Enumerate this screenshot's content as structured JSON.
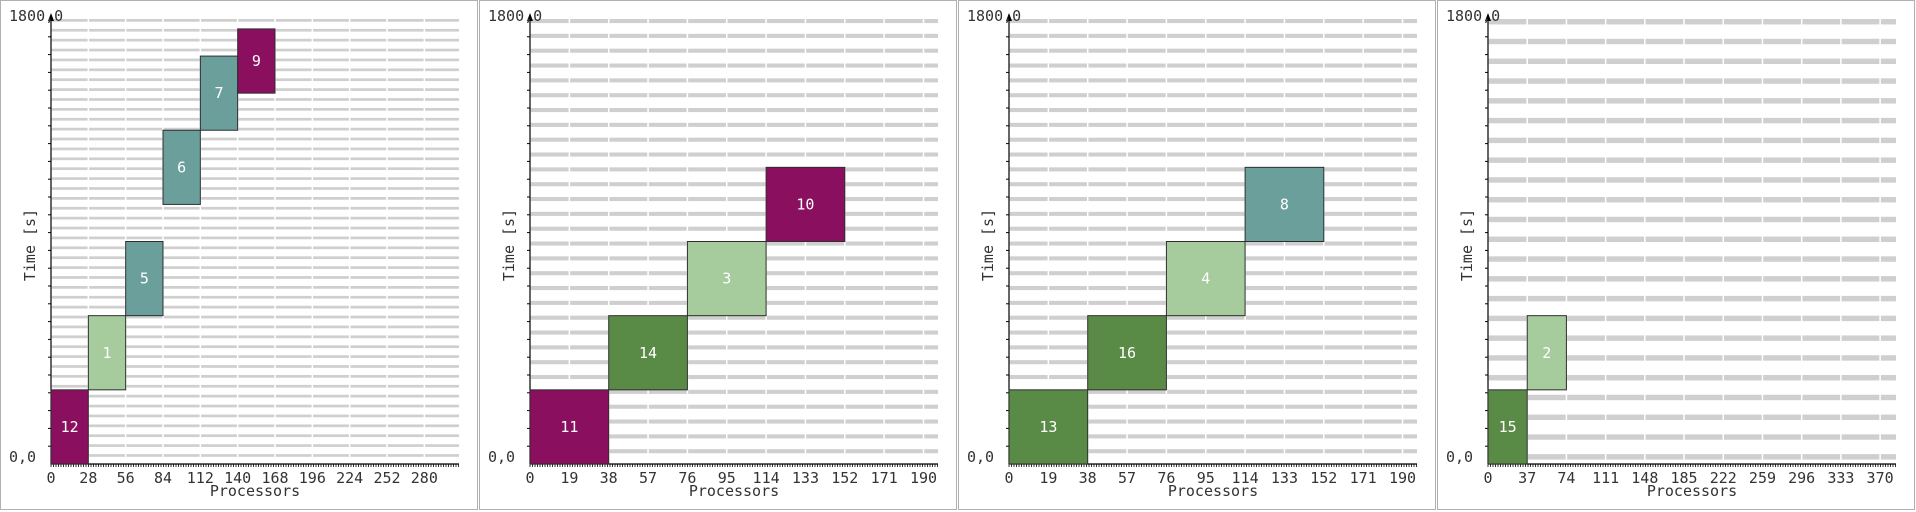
{
  "chart_data": [
    {
      "type": "gantt",
      "xlabel": "Processors",
      "ylabel": "Time [s]",
      "y_top_label": "1800,0",
      "y_bottom_label": "0,0",
      "xlim": [
        0,
        306
      ],
      "ylim": [
        0,
        1800
      ],
      "x_ticks": [
        "0",
        "28",
        "56",
        "84",
        "112",
        "140",
        "168",
        "196",
        "224",
        "252",
        "280"
      ],
      "grid_rows": 90,
      "jobs": [
        {
          "label": "12",
          "proc_start": 0,
          "proc_end": 28,
          "t_start": 0,
          "t_end": 300,
          "color": "#8b0f5f"
        },
        {
          "label": "1",
          "proc_start": 28,
          "proc_end": 56,
          "t_start": 300,
          "t_end": 600,
          "color": "#a6cb9d"
        },
        {
          "label": "5",
          "proc_start": 56,
          "proc_end": 84,
          "t_start": 600,
          "t_end": 900,
          "color": "#6b9f9c"
        },
        {
          "label": "6",
          "proc_start": 84,
          "proc_end": 112,
          "t_start": 1050,
          "t_end": 1350,
          "color": "#6b9f9c"
        },
        {
          "label": "7",
          "proc_start": 112,
          "proc_end": 140,
          "t_start": 1350,
          "t_end": 1650,
          "color": "#6b9f9c"
        },
        {
          "label": "9",
          "proc_start": 140,
          "proc_end": 168,
          "t_start": 1500,
          "t_end": 1760,
          "color": "#8b0f5f"
        }
      ]
    },
    {
      "type": "gantt",
      "xlabel": "Processors",
      "ylabel": "Time [s]",
      "y_top_label": "1800,0",
      "y_bottom_label": "0,0",
      "xlim": [
        0,
        197
      ],
      "ylim": [
        0,
        1800
      ],
      "x_ticks": [
        "0",
        "19",
        "38",
        "57",
        "76",
        "95",
        "114",
        "133",
        "152",
        "171",
        "190"
      ],
      "grid_rows": 60,
      "jobs": [
        {
          "label": "11",
          "proc_start": 0,
          "proc_end": 38,
          "t_start": 0,
          "t_end": 300,
          "color": "#8b0f5f"
        },
        {
          "label": "14",
          "proc_start": 38,
          "proc_end": 76,
          "t_start": 300,
          "t_end": 600,
          "color": "#5a8b46"
        },
        {
          "label": "3",
          "proc_start": 76,
          "proc_end": 114,
          "t_start": 600,
          "t_end": 900,
          "color": "#a6cb9d"
        },
        {
          "label": "10",
          "proc_start": 114,
          "proc_end": 152,
          "t_start": 900,
          "t_end": 1200,
          "color": "#8b0f5f"
        }
      ]
    },
    {
      "type": "gantt",
      "xlabel": "Processors",
      "ylabel": "Time [s]",
      "y_top_label": "1800,0",
      "y_bottom_label": "0,0",
      "xlim": [
        0,
        197
      ],
      "ylim": [
        0,
        1800
      ],
      "x_ticks": [
        "0",
        "19",
        "38",
        "57",
        "76",
        "95",
        "114",
        "133",
        "152",
        "171",
        "190"
      ],
      "grid_rows": 60,
      "jobs": [
        {
          "label": "13",
          "proc_start": 0,
          "proc_end": 38,
          "t_start": 0,
          "t_end": 300,
          "color": "#5a8b46"
        },
        {
          "label": "16",
          "proc_start": 38,
          "proc_end": 76,
          "t_start": 300,
          "t_end": 600,
          "color": "#5a8b46"
        },
        {
          "label": "4",
          "proc_start": 76,
          "proc_end": 114,
          "t_start": 600,
          "t_end": 900,
          "color": "#a6cb9d"
        },
        {
          "label": "8",
          "proc_start": 114,
          "proc_end": 152,
          "t_start": 900,
          "t_end": 1200,
          "color": "#6b9f9c"
        }
      ]
    },
    {
      "type": "gantt",
      "xlabel": "Processors",
      "ylabel": "Time [s]",
      "y_top_label": "1800,0",
      "y_bottom_label": "0,0",
      "xlim": [
        0,
        385
      ],
      "ylim": [
        0,
        1800
      ],
      "x_ticks": [
        "0",
        "37",
        "74",
        "111",
        "148",
        "185",
        "222",
        "259",
        "296",
        "333",
        "370"
      ],
      "grid_rows": 45,
      "jobs": [
        {
          "label": "15",
          "proc_start": 0,
          "proc_end": 37,
          "t_start": 0,
          "t_end": 300,
          "color": "#5a8b46"
        },
        {
          "label": "2",
          "proc_start": 37,
          "proc_end": 74,
          "t_start": 300,
          "t_end": 600,
          "color": "#a6cb9d"
        }
      ]
    }
  ]
}
